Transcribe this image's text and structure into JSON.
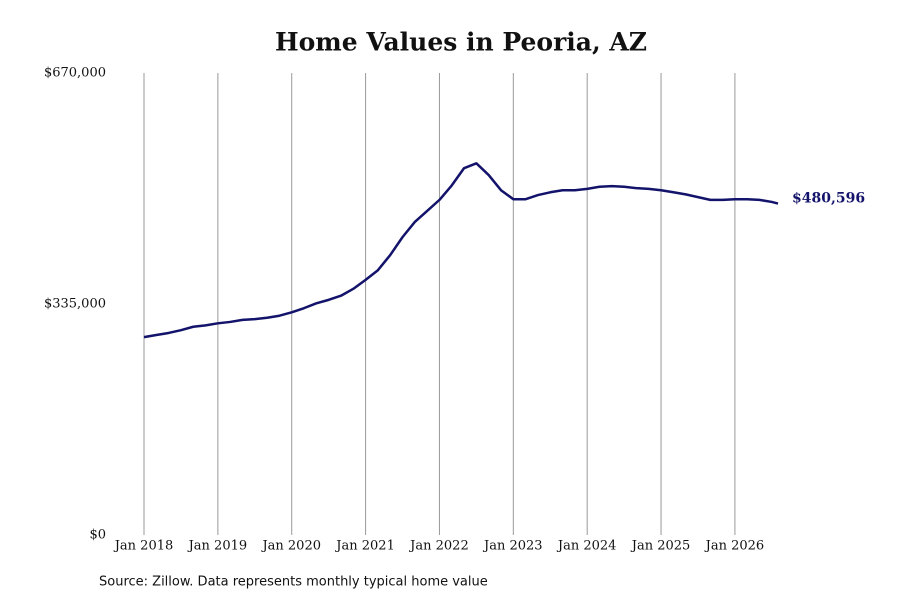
{
  "chart_data": {
    "type": "line",
    "title": "Home Values in Peoria, AZ",
    "note": "Source: Zillow. Data represents monthly typical home value",
    "x": [
      "2018-01",
      "2018-03",
      "2018-05",
      "2018-07",
      "2018-09",
      "2018-11",
      "2019-01",
      "2019-03",
      "2019-05",
      "2019-07",
      "2019-09",
      "2019-11",
      "2020-01",
      "2020-03",
      "2020-05",
      "2020-07",
      "2020-09",
      "2020-11",
      "2021-01",
      "2021-03",
      "2021-05",
      "2021-07",
      "2021-09",
      "2021-11",
      "2022-01",
      "2022-03",
      "2022-05",
      "2022-07",
      "2022-09",
      "2022-11",
      "2023-01",
      "2023-03",
      "2023-05",
      "2023-07",
      "2023-09",
      "2023-11",
      "2024-01",
      "2024-03",
      "2024-05",
      "2024-07",
      "2024-09",
      "2024-11",
      "2025-01",
      "2025-03",
      "2025-05",
      "2025-07",
      "2025-09",
      "2025-11",
      "2026-01",
      "2026-03",
      "2026-05",
      "2026-07",
      "2026-08"
    ],
    "series": [
      {
        "name": "Peoria, AZ",
        "color": "#13136b",
        "values": [
          287000,
          290000,
          293000,
          297000,
          302000,
          304000,
          307000,
          309000,
          312000,
          313000,
          315000,
          318000,
          323000,
          329000,
          336000,
          341000,
          347000,
          357000,
          370000,
          384000,
          406000,
          432000,
          454000,
          470000,
          486000,
          507000,
          532000,
          539000,
          522000,
          500000,
          487000,
          487000,
          493000,
          497000,
          500000,
          500000,
          502000,
          505000,
          506000,
          505000,
          503000,
          502000,
          500000,
          497000,
          494000,
          490000,
          486000,
          486000,
          487000,
          487000,
          486000,
          483000,
          480596
        ],
        "value_labels": [
          null,
          null,
          null,
          null,
          null,
          null,
          null,
          null,
          null,
          null,
          null,
          null,
          null,
          null,
          null,
          null,
          null,
          null,
          null,
          null,
          null,
          null,
          null,
          null,
          null,
          null,
          null,
          null,
          null,
          null,
          null,
          null,
          null,
          null,
          null,
          null,
          null,
          null,
          null,
          null,
          null,
          null,
          null,
          null,
          null,
          null,
          null,
          null,
          null,
          null,
          null,
          null,
          "$480,596"
        ]
      }
    ],
    "xlim": [
      "2018-01",
      "2026-08"
    ],
    "xticks": [
      {
        "value": "2018-01",
        "label": "Jan 2018"
      },
      {
        "value": "2019-01",
        "label": "Jan 2019"
      },
      {
        "value": "2020-01",
        "label": "Jan 2020"
      },
      {
        "value": "2021-01",
        "label": "Jan 2021"
      },
      {
        "value": "2022-01",
        "label": "Jan 2022"
      },
      {
        "value": "2023-01",
        "label": "Jan 2023"
      },
      {
        "value": "2024-01",
        "label": "Jan 2024"
      },
      {
        "value": "2025-01",
        "label": "Jan 2025"
      },
      {
        "value": "2026-01",
        "label": "Jan 2026"
      }
    ],
    "ylim": [
      0,
      670000
    ],
    "yticks": [
      {
        "value": 0,
        "label": "$0"
      },
      {
        "value": 335000,
        "label": "$335,000"
      },
      {
        "value": 670000,
        "label": "$670,000"
      }
    ],
    "grid": "x"
  }
}
